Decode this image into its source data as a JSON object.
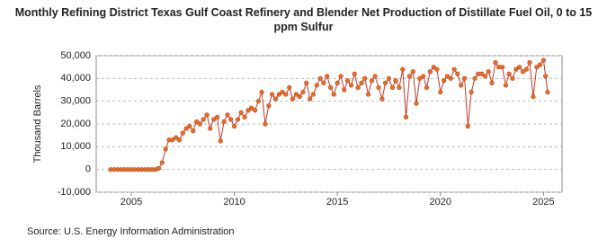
{
  "chart_data": {
    "type": "line",
    "title": "Monthly Refining District Texas Gulf Coast Refinery and Blender Net Production of Distillate Fuel Oil, 0 to 15 ppm Sulfur",
    "y_label": "Thousand Barrels",
    "source": "Source: U.S. Energy Information Administration",
    "xlim": [
      2003.3,
      2025.9
    ],
    "xticks": [
      2005,
      2010,
      2015,
      2020,
      2025
    ],
    "ylim": [
      -10000,
      50000
    ],
    "yticks": [
      {
        "value": -10000,
        "label": "-10,000"
      },
      0,
      {
        "value": 10000,
        "label": "10,000"
      },
      {
        "value": 20000,
        "label": "20,000"
      },
      {
        "value": 30000,
        "label": "30,000"
      },
      {
        "value": 40000,
        "label": "40,000"
      },
      {
        "value": 50000,
        "label": "50,000"
      }
    ],
    "grid": true,
    "series": [
      {
        "name": "Distillate Fuel Oil, 0 to 15 ppm Sulfur",
        "color": "#c0392b",
        "marker_color": "#e8701a",
        "x": [
          2004,
          2004.17,
          2004.33,
          2004.5,
          2004.67,
          2004.83,
          2005,
          2005.17,
          2005.33,
          2005.5,
          2005.67,
          2005.83,
          2006,
          2006.17,
          2006.33,
          2006.5,
          2006.67,
          2006.83,
          2007,
          2007.17,
          2007.33,
          2007.5,
          2007.67,
          2007.83,
          2008,
          2008.17,
          2008.33,
          2008.5,
          2008.67,
          2008.83,
          2009,
          2009.17,
          2009.33,
          2009.5,
          2009.67,
          2009.83,
          2010,
          2010.17,
          2010.33,
          2010.5,
          2010.67,
          2010.83,
          2011,
          2011.17,
          2011.33,
          2011.5,
          2011.67,
          2011.83,
          2012,
          2012.17,
          2012.33,
          2012.5,
          2012.67,
          2012.83,
          2013,
          2013.17,
          2013.33,
          2013.5,
          2013.67,
          2013.83,
          2014,
          2014.17,
          2014.33,
          2014.5,
          2014.67,
          2014.83,
          2015,
          2015.17,
          2015.33,
          2015.5,
          2015.67,
          2015.83,
          2016,
          2016.17,
          2016.33,
          2016.5,
          2016.67,
          2016.83,
          2017,
          2017.17,
          2017.33,
          2017.5,
          2017.67,
          2017.83,
          2018,
          2018.17,
          2018.33,
          2018.5,
          2018.67,
          2018.83,
          2019,
          2019.17,
          2019.33,
          2019.5,
          2019.67,
          2019.83,
          2020,
          2020.17,
          2020.33,
          2020.5,
          2020.67,
          2020.83,
          2021,
          2021.17,
          2021.33,
          2021.5,
          2021.67,
          2021.83,
          2022,
          2022.17,
          2022.33,
          2022.5,
          2022.67,
          2022.83,
          2023,
          2023.17,
          2023.33,
          2023.5,
          2023.67,
          2023.83,
          2024,
          2024.17,
          2024.33,
          2024.5,
          2024.67,
          2024.83,
          2025,
          2025.1,
          2025.2
        ],
        "values": [
          0,
          0,
          0,
          0,
          0,
          0,
          0,
          0,
          0,
          0,
          0,
          0,
          0,
          0,
          500,
          3000,
          9000,
          13000,
          13000,
          14000,
          13000,
          16000,
          18000,
          19000,
          17000,
          21000,
          20000,
          22000,
          24000,
          18000,
          22000,
          23000,
          12500,
          21000,
          24000,
          22000,
          19000,
          22000,
          25000,
          23000,
          26000,
          27000,
          26000,
          30000,
          34000,
          20000,
          28000,
          33000,
          31000,
          33000,
          34000,
          33000,
          36000,
          31000,
          33000,
          32000,
          34000,
          38000,
          31000,
          33000,
          37000,
          40000,
          38000,
          41000,
          36000,
          33000,
          38000,
          41000,
          35000,
          39000,
          37000,
          42000,
          36000,
          38000,
          40000,
          33000,
          39000,
          41000,
          36000,
          31000,
          38000,
          40000,
          36000,
          39000,
          36000,
          44000,
          23000,
          41000,
          43000,
          29000,
          40000,
          41000,
          36000,
          43000,
          45000,
          44000,
          34000,
          39000,
          41000,
          40000,
          44000,
          42000,
          37000,
          40000,
          19000,
          34000,
          40000,
          42000,
          42000,
          41000,
          43000,
          38000,
          47000,
          45000,
          45000,
          37000,
          42000,
          40000,
          44000,
          45000,
          43000,
          44000,
          47000,
          32000,
          45000,
          46000,
          48000,
          41000,
          34000
        ]
      }
    ]
  }
}
